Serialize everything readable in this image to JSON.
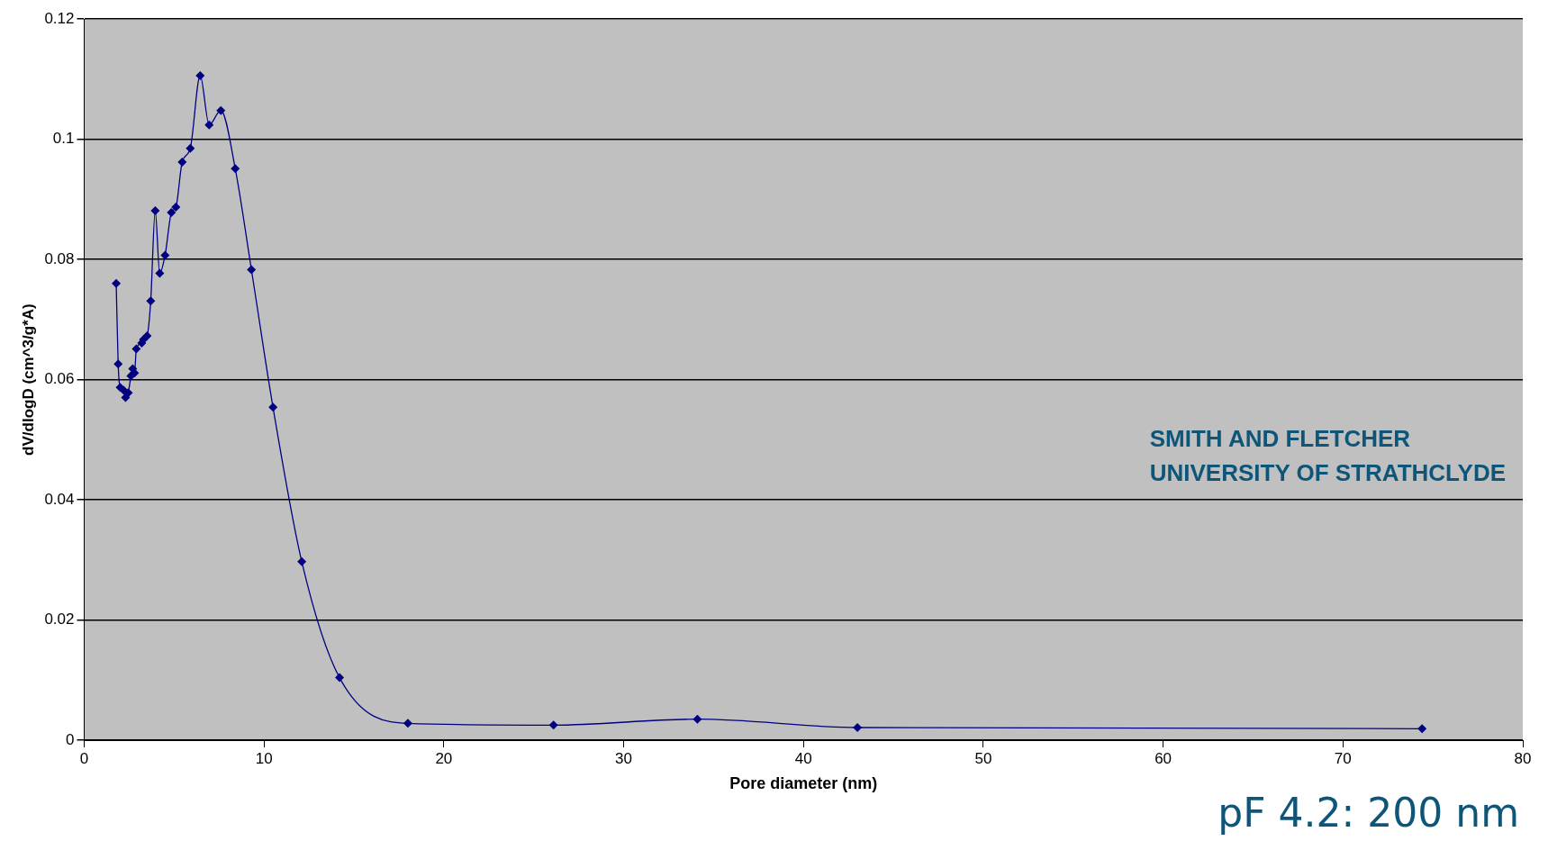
{
  "chart_data": {
    "type": "line",
    "xlabel": "Pore diameter (nm)",
    "ylabel": "dV/dlogD (cm^3/g*A)",
    "x": [
      1.78,
      1.89,
      2.0,
      2.2,
      2.3,
      2.45,
      2.6,
      2.7,
      2.8,
      2.9,
      3.2,
      3.3,
      3.5,
      3.7,
      3.95,
      4.2,
      4.5,
      4.85,
      5.1,
      5.45,
      5.9,
      6.45,
      6.95,
      7.6,
      8.4,
      9.3,
      10.5,
      12.1,
      14.2,
      18.0,
      26.1,
      34.1,
      43.0,
      74.4
    ],
    "series": [
      {
        "color": "#000080",
        "values": [
          0.076,
          0.0626,
          0.0587,
          0.0582,
          0.057,
          0.0578,
          0.0606,
          0.0618,
          0.0611,
          0.0651,
          0.0661,
          0.0667,
          0.0673,
          0.0731,
          0.0881,
          0.0777,
          0.0807,
          0.0878,
          0.0887,
          0.0962,
          0.0985,
          0.1106,
          0.1024,
          0.1048,
          0.0951,
          0.0783,
          0.0554,
          0.0297,
          0.0104,
          0.0028,
          0.0025,
          0.0035,
          0.0021,
          0.0019
        ]
      }
    ],
    "xlim": [
      0,
      80
    ],
    "xticks": [
      0,
      10,
      20,
      30,
      40,
      50,
      60,
      70,
      80
    ],
    "ylim": [
      0,
      0.12
    ],
    "yticks": [
      0,
      0.02,
      0.04,
      0.06,
      0.08,
      0.1,
      0.12
    ],
    "grid": "y",
    "legend": false,
    "marker": "diamond",
    "line_style": "solid",
    "annotations": [
      "SMITH AND FLETCHER",
      "UNIVERSITY OF STRATHCLYDE",
      "pF 4.2: 200 nm"
    ]
  }
}
